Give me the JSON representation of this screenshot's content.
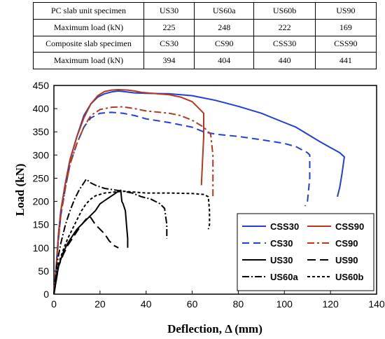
{
  "table": {
    "rows": [
      {
        "label": "PC slab unit specimen",
        "cells": [
          "US30",
          "US60a",
          "US60b",
          "US90"
        ]
      },
      {
        "label": "Maximum load (kN)",
        "cells": [
          "225",
          "248",
          "222",
          "169"
        ]
      },
      {
        "label": "Composite slab specimen",
        "cells": [
          "CS30",
          "CS90",
          "CSS30",
          "CSS90"
        ]
      },
      {
        "label": "Maximum load (kN)",
        "cells": [
          "394",
          "404",
          "440",
          "441"
        ]
      }
    ]
  },
  "chart_data": {
    "type": "line",
    "xlabel": "Deflection, Δ (mm)",
    "ylabel": "Load (kN)",
    "xlim": [
      0,
      140
    ],
    "ylim": [
      0,
      450
    ],
    "xticks": [
      0,
      20,
      40,
      60,
      80,
      100,
      120,
      140
    ],
    "yticks": [
      0,
      50,
      100,
      150,
      200,
      250,
      300,
      350,
      400,
      450
    ],
    "grid": false,
    "legend_position": "bottom-right",
    "series": [
      {
        "name": "CSS30",
        "color": "#1f3fd8",
        "dash": "solid",
        "points": [
          [
            0,
            0
          ],
          [
            1,
            60
          ],
          [
            2,
            130
          ],
          [
            3,
            180
          ],
          [
            5,
            240
          ],
          [
            7,
            290
          ],
          [
            10,
            340
          ],
          [
            13,
            385
          ],
          [
            16,
            410
          ],
          [
            19,
            425
          ],
          [
            22,
            432
          ],
          [
            25,
            436
          ],
          [
            28,
            438
          ],
          [
            30,
            437
          ],
          [
            35,
            434
          ],
          [
            40,
            433
          ],
          [
            50,
            432
          ],
          [
            60,
            428
          ],
          [
            70,
            418
          ],
          [
            80,
            405
          ],
          [
            90,
            390
          ],
          [
            100,
            370
          ],
          [
            105,
            360
          ],
          [
            110,
            345
          ],
          [
            115,
            330
          ],
          [
            120,
            316
          ],
          [
            124,
            305
          ],
          [
            126,
            296
          ],
          [
            125,
            260
          ],
          [
            124,
            230
          ],
          [
            123,
            210
          ]
        ]
      },
      {
        "name": "CSS90",
        "color": "#b5371c",
        "dash": "solid",
        "points": [
          [
            0,
            0
          ],
          [
            1,
            60
          ],
          [
            2,
            130
          ],
          [
            3,
            180
          ],
          [
            5,
            240
          ],
          [
            7,
            290
          ],
          [
            10,
            340
          ],
          [
            13,
            380
          ],
          [
            16,
            410
          ],
          [
            19,
            428
          ],
          [
            22,
            437
          ],
          [
            25,
            440
          ],
          [
            28,
            441
          ],
          [
            32,
            440
          ],
          [
            35,
            438
          ],
          [
            38,
            435
          ],
          [
            45,
            432
          ],
          [
            50,
            430
          ],
          [
            55,
            425
          ],
          [
            60,
            415
          ],
          [
            63,
            400
          ],
          [
            65,
            390
          ],
          [
            65,
            340
          ],
          [
            64.5,
            290
          ],
          [
            64,
            235
          ]
        ]
      },
      {
        "name": "CS30",
        "color": "#1f3fd8",
        "dash": "10,6",
        "points": [
          [
            0,
            0
          ],
          [
            1,
            55
          ],
          [
            2,
            120
          ],
          [
            3,
            170
          ],
          [
            5,
            230
          ],
          [
            7,
            280
          ],
          [
            10,
            325
          ],
          [
            13,
            360
          ],
          [
            16,
            380
          ],
          [
            20,
            390
          ],
          [
            25,
            392
          ],
          [
            30,
            390
          ],
          [
            35,
            385
          ],
          [
            40,
            378
          ],
          [
            50,
            370
          ],
          [
            60,
            360
          ],
          [
            65,
            350
          ],
          [
            70,
            345
          ],
          [
            80,
            340
          ],
          [
            90,
            333
          ],
          [
            100,
            325
          ],
          [
            105,
            318
          ],
          [
            110,
            305
          ],
          [
            111,
            300
          ],
          [
            111,
            250
          ],
          [
            110,
            200
          ],
          [
            109,
            190
          ]
        ]
      },
      {
        "name": "CS90",
        "color": "#b5371c",
        "dash": "10,4,3,4",
        "points": [
          [
            0,
            0
          ],
          [
            1,
            55
          ],
          [
            2,
            120
          ],
          [
            3,
            170
          ],
          [
            5,
            230
          ],
          [
            7,
            280
          ],
          [
            10,
            325
          ],
          [
            13,
            360
          ],
          [
            16,
            385
          ],
          [
            20,
            398
          ],
          [
            25,
            403
          ],
          [
            30,
            404
          ],
          [
            35,
            400
          ],
          [
            40,
            395
          ],
          [
            50,
            390
          ],
          [
            55,
            385
          ],
          [
            60,
            375
          ],
          [
            65,
            360
          ],
          [
            67,
            350
          ],
          [
            68,
            345
          ],
          [
            69,
            300
          ],
          [
            69,
            250
          ],
          [
            69,
            210
          ]
        ]
      },
      {
        "name": "US30",
        "color": "#000000",
        "dash": "solid",
        "points": [
          [
            0,
            0
          ],
          [
            2,
            60
          ],
          [
            4,
            90
          ],
          [
            6,
            110
          ],
          [
            8,
            125
          ],
          [
            10,
            140
          ],
          [
            12,
            150
          ],
          [
            15,
            165
          ],
          [
            18,
            180
          ],
          [
            20,
            195
          ],
          [
            23,
            205
          ],
          [
            26,
            215
          ],
          [
            28,
            222
          ],
          [
            29,
            224
          ],
          [
            29.5,
            200
          ],
          [
            30,
            195
          ],
          [
            31,
            180
          ],
          [
            31.5,
            150
          ],
          [
            32,
            120
          ],
          [
            32,
            100
          ]
        ]
      },
      {
        "name": "US90",
        "color": "#000000",
        "dash": "12,6",
        "points": [
          [
            0,
            0
          ],
          [
            2,
            60
          ],
          [
            4,
            85
          ],
          [
            6,
            105
          ],
          [
            8,
            120
          ],
          [
            10,
            135
          ],
          [
            12,
            150
          ],
          [
            14,
            162
          ],
          [
            15,
            168
          ],
          [
            16,
            165
          ],
          [
            18,
            150
          ],
          [
            20,
            140
          ],
          [
            22,
            130
          ],
          [
            24,
            115
          ],
          [
            26,
            105
          ],
          [
            28,
            100
          ]
        ]
      },
      {
        "name": "US60a",
        "color": "#000000",
        "dash": "10,3,2,3",
        "points": [
          [
            0,
            0
          ],
          [
            1.5,
            70
          ],
          [
            3,
            110
          ],
          [
            5,
            150
          ],
          [
            7,
            180
          ],
          [
            9,
            205
          ],
          [
            11,
            225
          ],
          [
            13,
            240
          ],
          [
            14,
            248
          ],
          [
            16,
            240
          ],
          [
            18,
            235
          ],
          [
            22,
            228
          ],
          [
            26,
            225
          ],
          [
            30,
            222
          ],
          [
            34,
            218
          ],
          [
            38,
            210
          ],
          [
            42,
            205
          ],
          [
            46,
            195
          ],
          [
            48,
            185
          ],
          [
            49,
            150
          ],
          [
            49,
            120
          ]
        ]
      },
      {
        "name": "US60b",
        "color": "#000000",
        "dash": "4,3",
        "points": [
          [
            0,
            0
          ],
          [
            2,
            65
          ],
          [
            4,
            95
          ],
          [
            6,
            120
          ],
          [
            8,
            140
          ],
          [
            10,
            160
          ],
          [
            12,
            180
          ],
          [
            14,
            195
          ],
          [
            16,
            205
          ],
          [
            18,
            212
          ],
          [
            22,
            218
          ],
          [
            26,
            220
          ],
          [
            30,
            222
          ],
          [
            35,
            220
          ],
          [
            40,
            218
          ],
          [
            50,
            218
          ],
          [
            60,
            217
          ],
          [
            65,
            215
          ],
          [
            67,
            210
          ],
          [
            67.5,
            180
          ],
          [
            67.5,
            150
          ],
          [
            67,
            140
          ]
        ]
      }
    ]
  }
}
